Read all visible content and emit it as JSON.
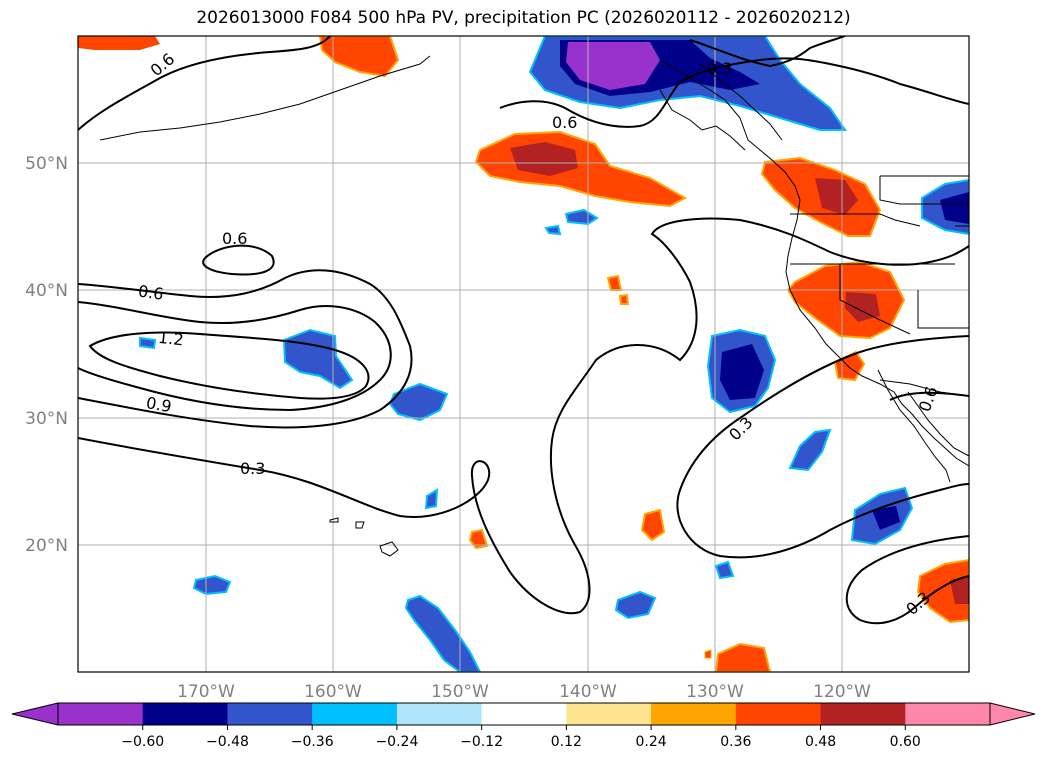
{
  "title": "2026013000 F084 500 hPa PV, precipitation PC (2026020112 - 2026020212)",
  "map": {
    "lat_labels": [
      "50°N",
      "40°N",
      "30°N",
      "20°N"
    ],
    "lon_labels": [
      "170°W",
      "160°W",
      "150°W",
      "140°W",
      "130°W",
      "120°W"
    ],
    "contour_labels": [
      "0.6",
      "0.3",
      "0.6",
      "0.6",
      "0.6",
      "1.2",
      "0.9",
      "0.3",
      "0.3",
      "0.3",
      "0.6"
    ]
  },
  "colorbar": {
    "ticks": [
      "−0.60",
      "−0.48",
      "−0.36",
      "−0.24",
      "−0.12",
      "0.12",
      "0.24",
      "0.36",
      "0.48",
      "0.60"
    ],
    "colors": {
      "under": "#9932cc",
      "bins": [
        "#9932cc",
        "#00008b",
        "#3355cc",
        "#00bfff",
        "#afe4fa",
        "#ffffff",
        "#ffe48f",
        "#ffa500",
        "#ff4500",
        "#b22222",
        "#ff88aa"
      ],
      "over": "#ff88aa"
    }
  },
  "colors": {
    "neg_dark": "#00008b",
    "neg_mid": "#3355cc",
    "neg_light": "#00bfff",
    "purple": "#9932cc",
    "pos_light": "#ffa500",
    "pos_mid": "#ff4500",
    "pos_dark": "#b22222",
    "grid": "#b0b0b0"
  }
}
